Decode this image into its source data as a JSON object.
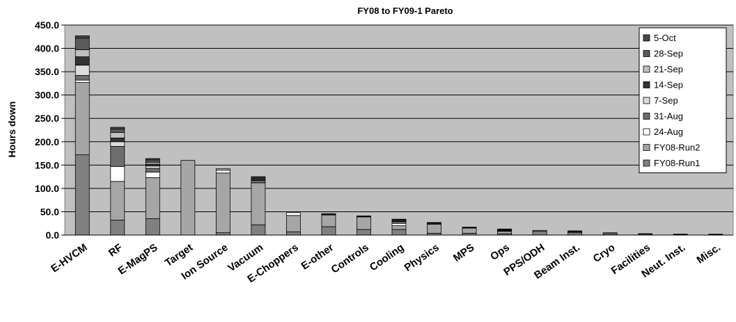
{
  "chart_data": {
    "type": "bar",
    "stacked": true,
    "title": "FY08 to FY09-1 Pareto",
    "xlabel": "",
    "ylabel": "Hours down",
    "ylim": [
      0,
      450
    ],
    "yticks": [
      "0.0",
      "50.0",
      "100.0",
      "150.0",
      "200.0",
      "250.0",
      "300.0",
      "350.0",
      "400.0",
      "450.0"
    ],
    "grid": true,
    "legend_position": "top-right",
    "categories": [
      "E-HVCM",
      "RF",
      "E-MagPS",
      "Target",
      "Ion Source",
      "Vacuum",
      "E-Choppers",
      "E-other",
      "Controls",
      "Cooling",
      "Physics",
      "MPS",
      "Ops",
      "PPS/ODH",
      "Beam Inst.",
      "Cryo",
      "Facilities",
      "Neut. Inst.",
      "Misc."
    ],
    "series": [
      {
        "name": "FY08-Run1",
        "color": "#808080",
        "values": [
          172,
          32,
          35,
          0,
          5,
          22,
          7,
          18,
          12,
          12,
          4,
          4,
          3,
          8,
          5,
          3,
          2,
          1,
          1
        ]
      },
      {
        "name": "FY08-Run2",
        "color": "#a6a6a6",
        "values": [
          155,
          83,
          88,
          160,
          128,
          90,
          35,
          25,
          27,
          8,
          19,
          11,
          5,
          2,
          2,
          2,
          1,
          1,
          1
        ]
      },
      {
        "name": "24-Aug",
        "color": "#ffffff",
        "values": [
          5,
          32,
          12,
          0,
          6,
          0,
          6,
          0,
          0,
          5,
          0,
          0,
          0,
          0,
          0,
          0,
          0,
          0,
          0
        ]
      },
      {
        "name": "31-Aug",
        "color": "#6e6e6e",
        "values": [
          10,
          43,
          8,
          0,
          0,
          5,
          0,
          1,
          1,
          4,
          2,
          1,
          1,
          0,
          1,
          0,
          0,
          0,
          0
        ]
      },
      {
        "name": "7-Sep",
        "color": "#dcdcdc",
        "values": [
          22,
          10,
          5,
          0,
          0,
          0,
          0,
          0,
          0,
          1,
          1,
          0,
          1,
          0,
          0,
          0,
          0,
          0,
          0
        ]
      },
      {
        "name": "14-Sep",
        "color": "#333333",
        "values": [
          18,
          8,
          4,
          0,
          0,
          4,
          0,
          0,
          0,
          3,
          0,
          1,
          2,
          0,
          1,
          0,
          0,
          0,
          0
        ]
      },
      {
        "name": "21-Sep",
        "color": "#bfbfbf",
        "values": [
          15,
          12,
          4,
          0,
          3,
          0,
          0,
          0,
          0,
          0,
          1,
          0,
          0,
          0,
          0,
          0,
          0,
          0,
          0
        ]
      },
      {
        "name": "28-Sep",
        "color": "#5a5a5a",
        "values": [
          25,
          7,
          5,
          0,
          0,
          3,
          0,
          2,
          1,
          1,
          0,
          0,
          1,
          0,
          0,
          0,
          0,
          0,
          0
        ]
      },
      {
        "name": "5-Oct",
        "color": "#4a4a4a",
        "values": [
          5,
          4,
          3,
          0,
          0,
          1,
          0,
          0,
          0,
          0,
          0,
          0,
          0,
          0,
          0,
          0,
          0,
          0,
          0
        ]
      }
    ]
  }
}
